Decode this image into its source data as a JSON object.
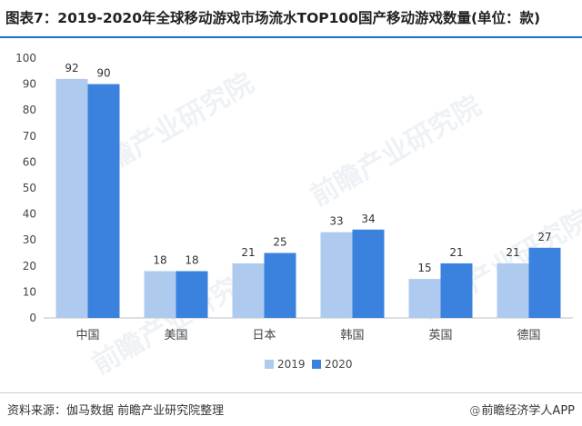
{
  "title": "图表7：2019-2020年全球移动游戏市场流水TOP100国产移动游戏数量(单位：款)",
  "footer": {
    "source": "资料来源：伽马数据 前瞻产业研究院整理",
    "credit_icon": "at-icon",
    "credit": "前瞻经济学人APP"
  },
  "watermark": "前瞻产业研究院",
  "colors": {
    "series_2019": "#aecbef",
    "series_2020": "#3b82df",
    "title_rule": "#1e6fc8"
  },
  "chart_data": {
    "type": "bar",
    "categories": [
      "中国",
      "美国",
      "日本",
      "韩国",
      "英国",
      "德国"
    ],
    "series": [
      {
        "name": "2019",
        "values": [
          92,
          18,
          21,
          33,
          15,
          21
        ]
      },
      {
        "name": "2020",
        "values": [
          90,
          18,
          25,
          34,
          21,
          27
        ]
      }
    ],
    "ylim": [
      0,
      100
    ],
    "yticks": [
      0,
      10,
      20,
      30,
      40,
      50,
      60,
      70,
      80,
      90,
      100
    ],
    "legend": "bottom-center",
    "grid": false,
    "data_labels": true
  }
}
